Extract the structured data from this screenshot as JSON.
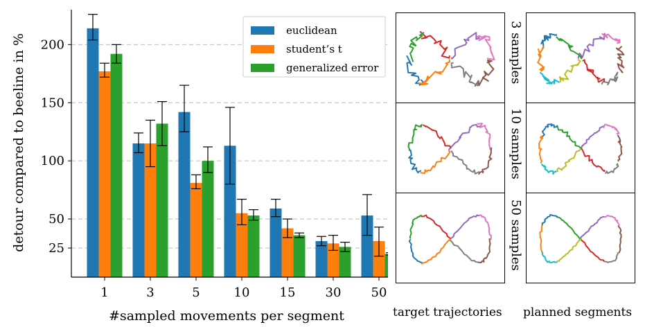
{
  "chart_data": {
    "type": "bar",
    "categories": [
      "1",
      "3",
      "5",
      "10",
      "15",
      "30",
      "50"
    ],
    "xlabel": "#sampled movements per segment",
    "ylabel": "detour compared to beeline in %",
    "yticks": [
      25,
      50,
      100,
      150,
      200
    ],
    "ylim": [
      0,
      230
    ],
    "grid": "horizontal dashed",
    "legend_position": "top-right",
    "series": [
      {
        "name": "euclidean",
        "color": "#1f77b4",
        "values": [
          214,
          115,
          142,
          113,
          59,
          31,
          53
        ],
        "err_low": [
          204,
          107,
          125,
          80,
          52,
          27,
          36
        ],
        "err_high": [
          226,
          124,
          165,
          146,
          67,
          35,
          71
        ]
      },
      {
        "name": "student’s t",
        "color": "#ff7f0e",
        "values": [
          177,
          115,
          81,
          55,
          42,
          29,
          31
        ],
        "err_low": [
          172,
          95,
          76,
          45,
          34,
          23,
          18
        ],
        "err_high": [
          184,
          135,
          88,
          67,
          50,
          36,
          43
        ]
      },
      {
        "name": "generalized error",
        "color": "#2ca02c",
        "values": [
          192,
          132,
          100,
          53,
          36,
          26,
          20
        ],
        "err_low": [
          184,
          113,
          90,
          49,
          34,
          22,
          19
        ],
        "err_high": [
          200,
          151,
          112,
          58,
          38,
          30,
          21
        ]
      }
    ]
  },
  "panels": {
    "row_labels": [
      "3 samples",
      "10 samples",
      "50 samples"
    ],
    "col_labels": [
      "target trajectories",
      "planned segments"
    ]
  }
}
